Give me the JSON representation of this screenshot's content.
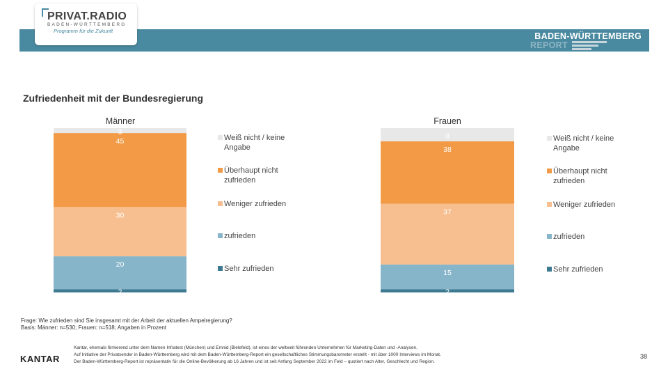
{
  "logo": {
    "title": "PRIVAT.RADIO",
    "subtitle": "BADEN-WÜRTTEMBERG",
    "tagline": "Programm für die Zukunft"
  },
  "report": {
    "title": "BADEN-WÜRTTEMBERG",
    "subtitle": "REPORT"
  },
  "chart_data": {
    "type": "bar",
    "stacked": true,
    "title": "Zufriedenheit mit der Bundesregierung",
    "unit": "Prozent",
    "categories": [
      "Männer",
      "Frauen"
    ],
    "ylim": [
      0,
      100
    ],
    "grid": false,
    "legend_position": "right",
    "series": [
      {
        "name": "Sehr zufrieden",
        "color": "#3d7a92",
        "values": [
          2,
          2
        ]
      },
      {
        "name": "zufrieden",
        "color": "#86b5c9",
        "values": [
          20,
          15
        ]
      },
      {
        "name": "Weniger zufrieden",
        "color": "#f7bf8f",
        "values": [
          30,
          37
        ]
      },
      {
        "name": "Überhaupt nicht zufrieden",
        "color": "#f29a46",
        "values": [
          45,
          38
        ]
      },
      {
        "name": "Weiß nicht / keine Angabe",
        "color": "#e8e8e8",
        "values": [
          3,
          8
        ]
      }
    ]
  },
  "footnote": {
    "question": "Frage: Wie zufrieden sind Sie insgesamt mit der Arbeit der aktuellen Ampelregierung?",
    "basis": "Basis: Männer: n=530; Frauen: n=518; Angaben in Prozent"
  },
  "footer": {
    "brand": "KANTAR",
    "line1": "Kantar, ehemals firmierend unter dem Namen Infratest (München) und Emnid (Bielefeld), ist eines der weltweit führenden Unternehmen für Marketing-Daten und -Analysen.",
    "line2": "Auf Initiative der Privatsender in Baden-Württemberg wird mit dem Baden-Württemberg-Report ein gesellschaftliches Stimmungsbarometer erstellt - mit über 1000 Interviews im Monat.",
    "line3": "Der Baden-Württemberg-Report ist repräsentativ für die Online-Bevölkerung ab 16 Jahren und ist seit Anfang September 2022 im Feld – quotiert nach Alter, Geschlecht und Region.",
    "page": "38"
  }
}
